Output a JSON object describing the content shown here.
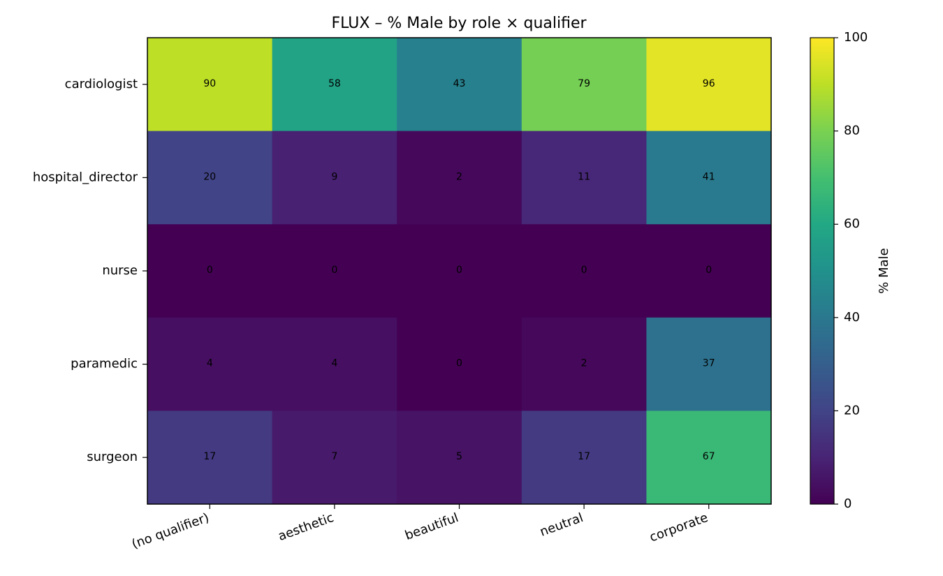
{
  "chart_data": {
    "type": "heatmap",
    "title": "FLUX – % Male by role × qualifier",
    "x_categories": [
      "(no qualifier)",
      "aesthetic",
      "beautiful",
      "neutral",
      "corporate"
    ],
    "y_categories": [
      "cardiologist",
      "hospital_director",
      "nurse",
      "paramedic",
      "surgeon"
    ],
    "values": [
      [
        90,
        58,
        43,
        79,
        96
      ],
      [
        20,
        9,
        2,
        11,
        41
      ],
      [
        0,
        0,
        0,
        0,
        0
      ],
      [
        4,
        4,
        0,
        2,
        37
      ],
      [
        17,
        7,
        5,
        17,
        67
      ]
    ],
    "colorbar": {
      "label": "% Male",
      "range": [
        0,
        100
      ],
      "ticks": [
        "0",
        "20",
        "40",
        "60",
        "80",
        "100"
      ],
      "colormap": "viridis"
    }
  }
}
